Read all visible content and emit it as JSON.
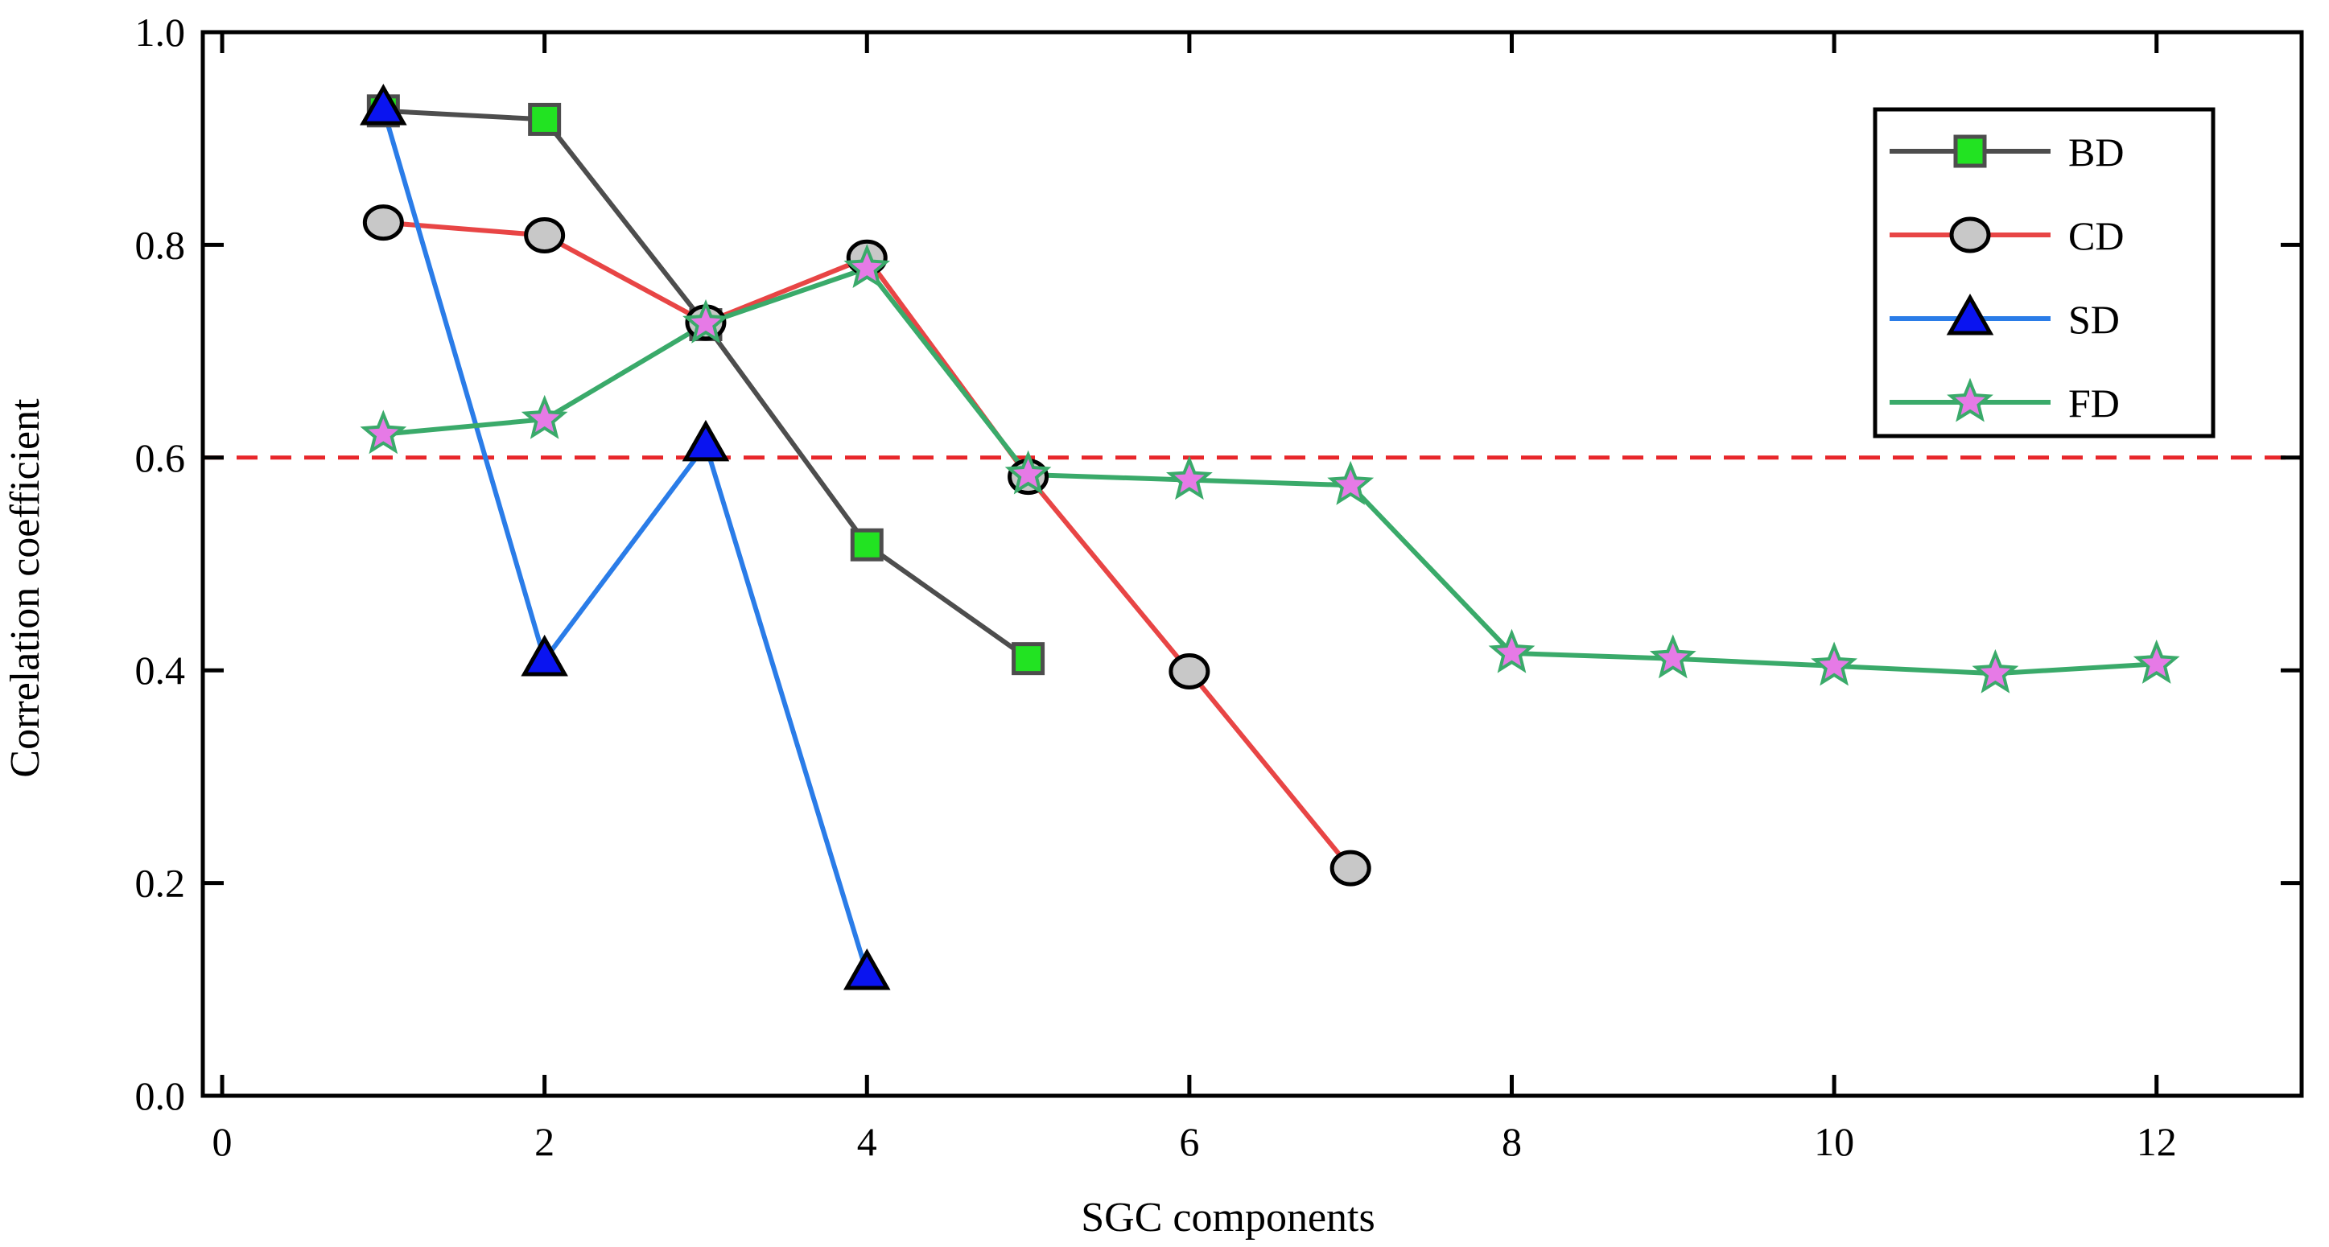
{
  "chart_data": {
    "type": "line",
    "title": "",
    "xlabel": "SGC components",
    "ylabel": "Correlation coefficient",
    "xlim": [
      -0.12,
      12.9
    ],
    "ylim": [
      0.0,
      1.0
    ],
    "xticks": [
      0,
      2,
      4,
      6,
      8,
      10,
      12
    ],
    "yticks": [
      0.0,
      0.2,
      0.4,
      0.6,
      0.8,
      1.0
    ],
    "xtick_labels": [
      "0",
      "2",
      "4",
      "6",
      "8",
      "10",
      "12"
    ],
    "ytick_labels": [
      "0.0",
      "0.2",
      "0.4",
      "0.6",
      "0.8",
      "1.0"
    ],
    "grid": false,
    "legend_position": "top-right",
    "threshold": {
      "value": 0.6,
      "color": "#e8262a",
      "style": "dashed"
    },
    "series": [
      {
        "name": "BD",
        "marker": "square",
        "line_color": "#4d4d4d",
        "marker_fill": "#22e322",
        "marker_stroke": "#4d4d4d",
        "x": [
          1,
          2,
          3,
          4,
          5
        ],
        "values": [
          0.926,
          0.918,
          0.725,
          0.518,
          0.411
        ]
      },
      {
        "name": "CD",
        "marker": "circle",
        "line_color": "#e84545",
        "marker_fill": "#c8c8c8",
        "marker_stroke": "#000000",
        "x": [
          1,
          2,
          3,
          4,
          5,
          6,
          7
        ],
        "values": [
          0.821,
          0.809,
          0.727,
          0.788,
          0.582,
          0.399,
          0.214
        ]
      },
      {
        "name": "SD",
        "marker": "triangle",
        "line_color": "#2a7ce8",
        "marker_fill": "#0a14f0",
        "marker_stroke": "#000000",
        "x": [
          1,
          2,
          3,
          4
        ],
        "values": [
          0.928,
          0.41,
          0.612,
          0.115
        ]
      },
      {
        "name": "FD",
        "marker": "star",
        "line_color": "#3aaa6a",
        "marker_fill": "#e67ae6",
        "marker_stroke": "#3aaa6a",
        "x": [
          1,
          2,
          3,
          4,
          5,
          6,
          7,
          8,
          9,
          10,
          11,
          12
        ],
        "values": [
          0.622,
          0.636,
          0.726,
          0.778,
          0.584,
          0.579,
          0.574,
          0.416,
          0.411,
          0.404,
          0.397,
          0.406
        ]
      }
    ]
  }
}
